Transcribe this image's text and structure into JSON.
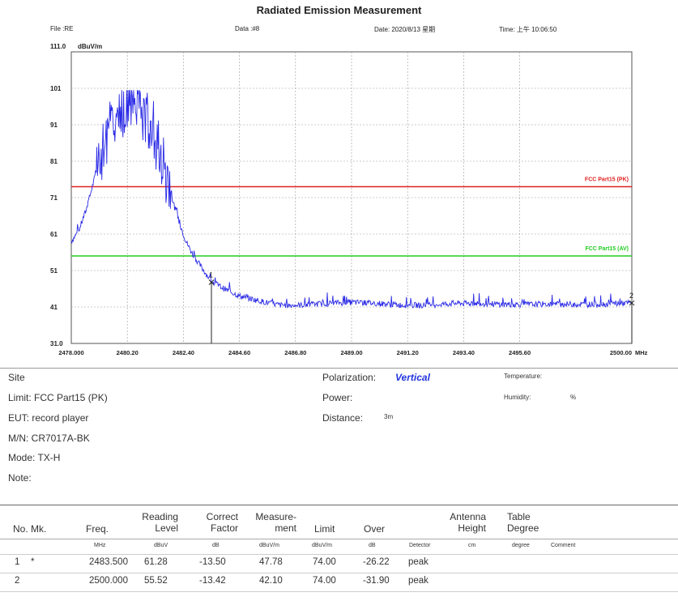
{
  "header": {
    "title": "Radiated Emission Measurement",
    "file": "File :RE",
    "data": "Data :#8",
    "date": "Date: 2020/8/13 星期",
    "time": "Time: 上午 10:06:50"
  },
  "chart_data": {
    "type": "line",
    "ytop_label": "111.0",
    "yunit": "dBuV/m",
    "ylim": [
      31,
      111
    ],
    "xlim": [
      2478.0,
      2500.0
    ],
    "xunit": "MHz",
    "y_ticks": [
      {
        "v": 101,
        "label": "101"
      },
      {
        "v": 91,
        "label": "91"
      },
      {
        "v": 81,
        "label": "81"
      },
      {
        "v": 71,
        "label": "71"
      },
      {
        "v": 61,
        "label": "61"
      },
      {
        "v": 51,
        "label": "51"
      },
      {
        "v": 41,
        "label": "41"
      },
      {
        "v": 31,
        "label": "31.0"
      }
    ],
    "x_ticks": [
      {
        "v": 2478.0,
        "label": "2478.000"
      },
      {
        "v": 2480.2,
        "label": "2480.20"
      },
      {
        "v": 2482.4,
        "label": "2482.40"
      },
      {
        "v": 2484.6,
        "label": "2484.60"
      },
      {
        "v": 2486.8,
        "label": "2486.80"
      },
      {
        "v": 2489.0,
        "label": "2489.00"
      },
      {
        "v": 2491.2,
        "label": "2491.20"
      },
      {
        "v": 2493.4,
        "label": "2493.40"
      },
      {
        "v": 2495.6,
        "label": "2495.60"
      },
      {
        "v": 2500.0,
        "label": "2500.00"
      }
    ],
    "limits": [
      {
        "name": "FCC Part15 (PK)",
        "value": 74,
        "color": "#e02020"
      },
      {
        "name": "FCC Part15 (AV)",
        "value": 55,
        "color": "#22cc22"
      }
    ],
    "trace_color": "#2a2ae6",
    "envelope": [
      [
        2478.0,
        59
      ],
      [
        2478.3,
        62
      ],
      [
        2478.6,
        68
      ],
      [
        2478.9,
        76
      ],
      [
        2479.2,
        84
      ],
      [
        2479.5,
        90
      ],
      [
        2479.8,
        94
      ],
      [
        2480.1,
        96
      ],
      [
        2480.4,
        97
      ],
      [
        2480.7,
        96
      ],
      [
        2481.0,
        93
      ],
      [
        2481.3,
        88
      ],
      [
        2481.6,
        80
      ],
      [
        2481.9,
        72
      ],
      [
        2482.2,
        65
      ],
      [
        2482.5,
        59
      ],
      [
        2482.8,
        55
      ],
      [
        2483.1,
        52
      ],
      [
        2483.5,
        48
      ],
      [
        2484.0,
        46
      ],
      [
        2484.6,
        44
      ],
      [
        2485.2,
        43
      ],
      [
        2485.8,
        42
      ],
      [
        2486.2,
        41.5
      ],
      [
        2487.0,
        41.5
      ],
      [
        2488.0,
        42
      ],
      [
        2489.0,
        42.3
      ],
      [
        2490.0,
        42
      ],
      [
        2491.0,
        41.5
      ],
      [
        2492.0,
        41.5
      ],
      [
        2493.0,
        42
      ],
      [
        2494.0,
        42
      ],
      [
        2495.0,
        41.7
      ],
      [
        2496.0,
        41.7
      ],
      [
        2497.0,
        41.8
      ],
      [
        2498.0,
        41.7
      ],
      [
        2499.0,
        41.8
      ],
      [
        2500.0,
        42.1
      ]
    ],
    "markers": [
      {
        "label": "1",
        "x": 2483.5,
        "y": 47.78
      },
      {
        "label": "2",
        "x": 2500.0,
        "y": 42.1
      }
    ]
  },
  "info": {
    "site": "Site",
    "limit": "Limit: FCC Part15 (PK)",
    "eut": "EUT:  record player",
    "mn": "M/N:  CR7017A-BK",
    "mode": "Mode:  TX-H",
    "note": "Note:",
    "polarization_label": "Polarization:",
    "polarization_value": "Vertical",
    "power": "Power:",
    "distance_label": "Distance:",
    "distance_value": "3m",
    "temperature": "Temperature:",
    "humidity": "Humidity:",
    "humidity_unit": "%"
  },
  "table": {
    "headers": {
      "no_mk": "No. Mk.",
      "freq": "Freq.",
      "reading": "Reading\nLevel",
      "correct": "Correct\nFactor",
      "measure": "Measure-\nment",
      "limit": "Limit",
      "over": "Over",
      "antenna": "Antenna\nHeight",
      "table_deg": "Table\nDegree"
    },
    "units": {
      "freq": "MHz",
      "reading": "dBuV",
      "correct": "dB",
      "measure": "dBuV/m",
      "limit": "dBuV/m",
      "over": "dB",
      "detector": "Detector",
      "antenna": "cm",
      "table_deg": "degree",
      "comment": "Comment"
    },
    "rows": [
      {
        "no": "1",
        "mk": "*",
        "freq": "2483.500",
        "reading": "61.28",
        "correct": "-13.50",
        "measure": "47.78",
        "limit": "74.00",
        "over": "-26.22",
        "detector": "peak"
      },
      {
        "no": "2",
        "mk": "",
        "freq": "2500.000",
        "reading": "55.52",
        "correct": "-13.42",
        "measure": "42.10",
        "limit": "74.00",
        "over": "-31.90",
        "detector": "peak"
      }
    ]
  }
}
